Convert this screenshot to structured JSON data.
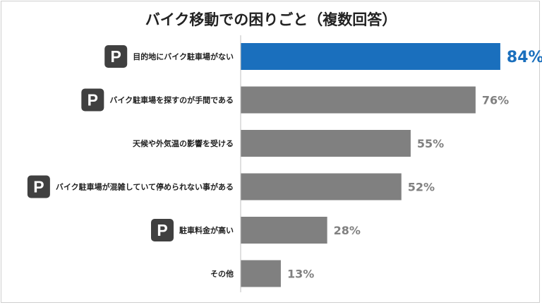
{
  "chart_data": {
    "type": "bar",
    "orientation": "horizontal",
    "title": "バイク移動での困りごと（複数回答）",
    "categories": [
      "目的地にバイク駐車場がない",
      "バイク駐車場を探すのが手間である",
      "天候や外気温の影響を受ける",
      "バイク駐車場が混雑していて停められない事がある",
      "駐車料金が高い",
      "その他"
    ],
    "values": [
      84,
      76,
      55,
      52,
      28,
      13
    ],
    "value_labels": [
      "84%",
      "76%",
      "55%",
      "52%",
      "28%",
      "13%"
    ],
    "parking_badge": [
      true,
      true,
      false,
      true,
      true,
      false
    ],
    "badge_text": "P",
    "highlight_index": 0,
    "xlim": [
      0,
      100
    ],
    "grid": false,
    "legend": "none",
    "colors": {
      "highlight": "#1a6fbd",
      "bar": "#808080",
      "badge": "#404040",
      "label": "#222222"
    }
  }
}
